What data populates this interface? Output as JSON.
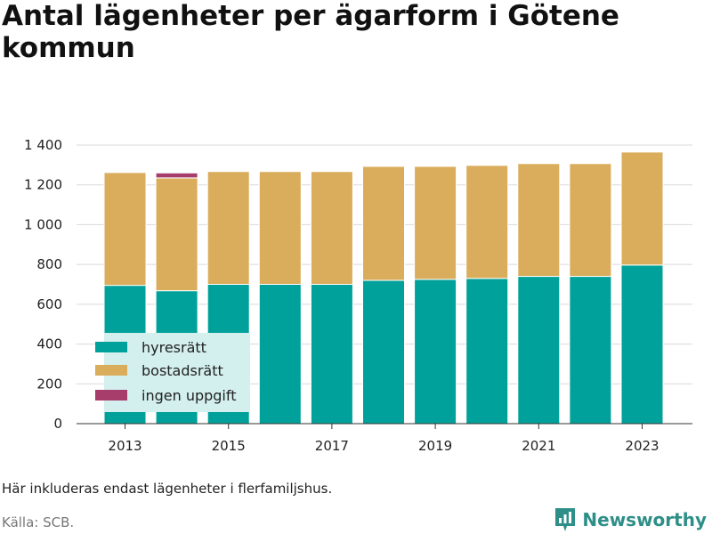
{
  "title": "Antal lägenheter per ägarform i Götene kommun",
  "note": "Här inkluderas endast lägenheter i flerfamiljshus.",
  "source": "Källa: SCB.",
  "brand": "Newsworthy",
  "colors": {
    "hyresratt": "#00a19a",
    "bostadsratt": "#daad5c",
    "ingen_uppgift": "#a63d6b",
    "legend_bg": "#d3efee",
    "grid": "#d9d9d9",
    "brand": "#2e8f88"
  },
  "chart_data": {
    "type": "bar",
    "stacked": true,
    "categories": [
      "2013",
      "2014",
      "2015",
      "2016",
      "2017",
      "2018",
      "2019",
      "2020",
      "2021",
      "2022",
      "2023"
    ],
    "x_tick_labels": [
      "2013",
      "2015",
      "2017",
      "2019",
      "2021",
      "2023"
    ],
    "y_tick_labels": [
      "0",
      "200",
      "400",
      "600",
      "800",
      "1 000",
      "1 200",
      "1 400"
    ],
    "ylim": [
      0,
      1400
    ],
    "grid": true,
    "legend_position": "bottom-left",
    "series": [
      {
        "name": "hyresrätt",
        "key": "hyresratt",
        "values": [
          695,
          668,
          700,
          700,
          700,
          720,
          725,
          730,
          740,
          740,
          797
        ]
      },
      {
        "name": "bostadsrätt",
        "key": "bostadsratt",
        "values": [
          567,
          567,
          567,
          567,
          567,
          573,
          568,
          568,
          567,
          567,
          568
        ]
      },
      {
        "name": "ingen uppgift",
        "key": "ingen_uppgift",
        "values": [
          0,
          25,
          0,
          0,
          0,
          0,
          0,
          0,
          0,
          0,
          0
        ]
      }
    ]
  }
}
